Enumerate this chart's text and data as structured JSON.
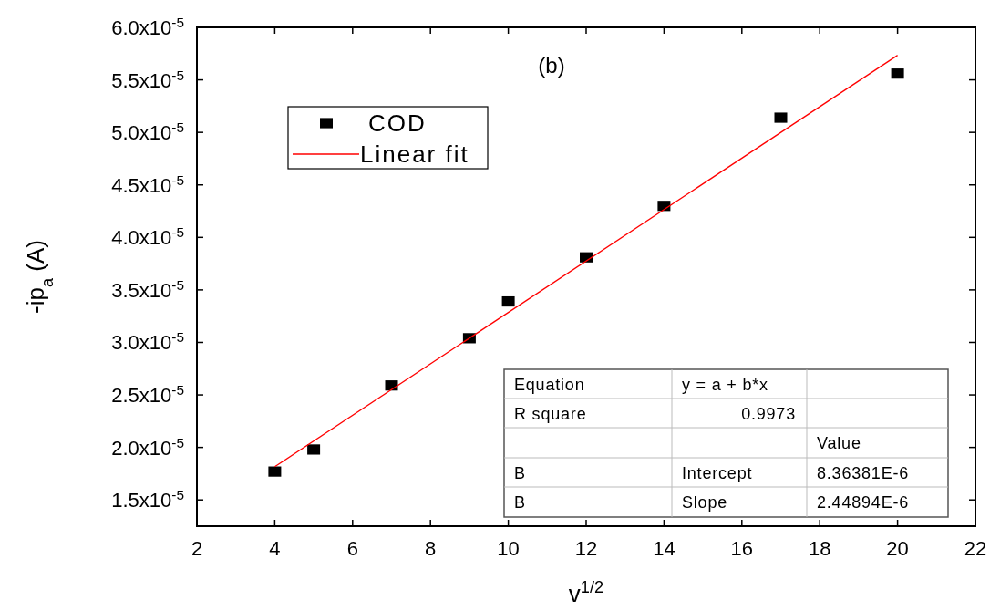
{
  "chart_data": {
    "type": "scatter",
    "title": "(b)",
    "xlabel": "v$^{1/2}$",
    "ylabel": "-ip$_{a}$ (A)",
    "xlim": [
      2,
      22
    ],
    "xticks": [
      2,
      4,
      6,
      8,
      10,
      12,
      14,
      16,
      18,
      20,
      22
    ],
    "ylim": [
      1.25e-05,
      6e-05
    ],
    "yticks": [
      {
        "value": 1.5e-05,
        "label": "1.5x10$^{-5}$"
      },
      {
        "value": 2e-05,
        "label": "2.0x10$^{-5}$"
      },
      {
        "value": 2.5e-05,
        "label": "2.5x10$^{-5}$"
      },
      {
        "value": 3e-05,
        "label": "3.0x10$^{-5}$"
      },
      {
        "value": 3.5e-05,
        "label": "3.5x10$^{-5}$"
      },
      {
        "value": 4e-05,
        "label": "4.0x10$^{-5}$"
      },
      {
        "value": 4.5e-05,
        "label": "4.5x10$^{-5}$"
      },
      {
        "value": 5e-05,
        "label": "5.0x10$^{-5}$"
      },
      {
        "value": 5.5e-05,
        "label": "5.5x10$^{-5}$"
      },
      {
        "value": 6e-05,
        "label": "6.0x10$^{-5}$"
      }
    ],
    "series": [
      {
        "name": "COD",
        "color": "#000000",
        "marker": "square",
        "x": [
          4,
          5,
          7,
          9,
          10,
          12,
          14,
          17,
          20
        ],
        "values": [
          1.77e-05,
          1.98e-05,
          2.59e-05,
          3.04e-05,
          3.39e-05,
          3.81e-05,
          4.3e-05,
          5.14e-05,
          5.56e-05
        ]
      },
      {
        "name": "Linear fit",
        "type": "line",
        "color": "#ff0000",
        "marker": "none",
        "line_style": "solid",
        "x": [
          4,
          20
        ],
        "values": [
          1.816e-05,
          5.734e-05
        ]
      }
    ],
    "legend": "top left",
    "grid": false,
    "annotations": [
      "Equation",
      "y = a + b*x",
      "R square",
      "0.9973",
      "Value",
      "B",
      "Intercept",
      "8.36381E-6",
      "B",
      "Slope",
      "2.44894E-6"
    ]
  }
}
